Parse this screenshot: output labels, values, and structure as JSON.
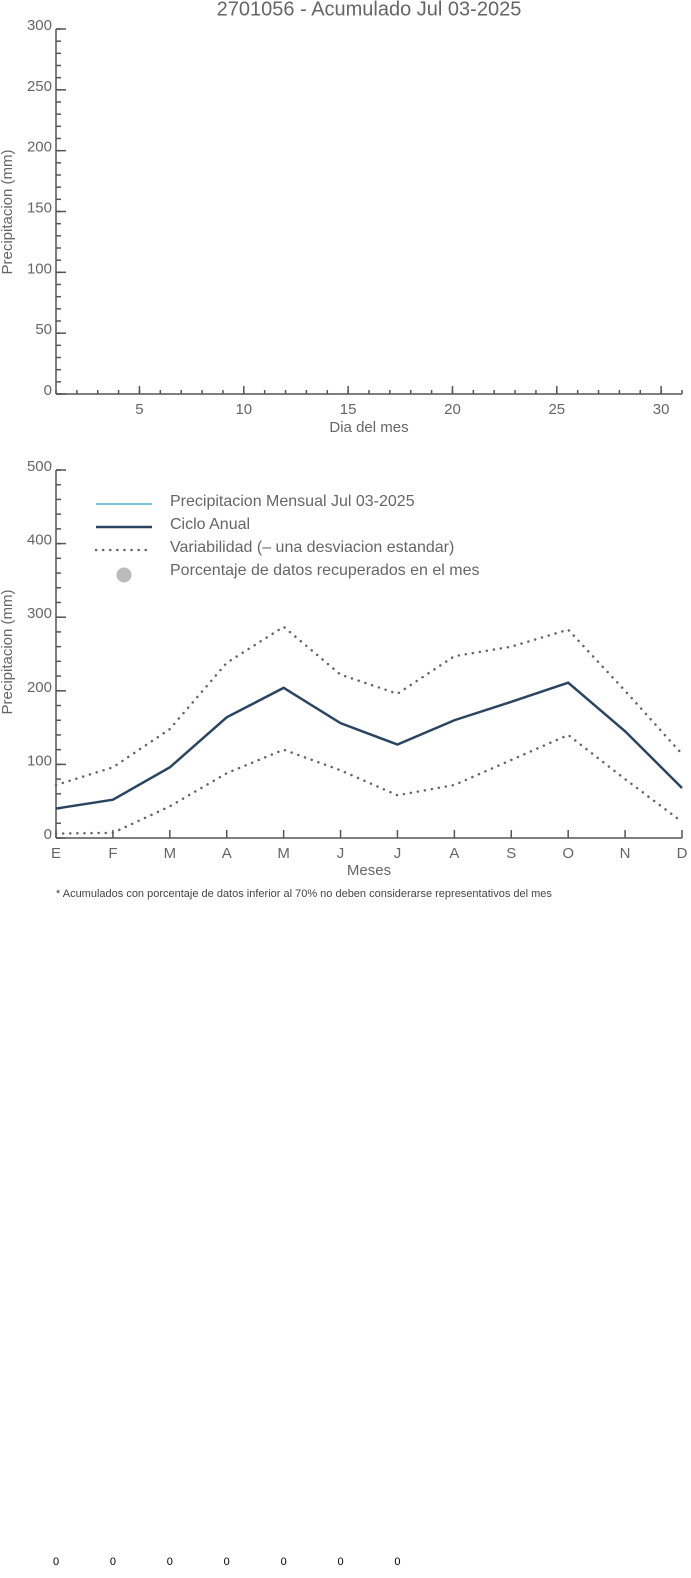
{
  "chart_data": [
    {
      "type": "line",
      "title": "2701056 - Acumulado Jul 03-2025",
      "x_label": "Dia del mes",
      "y_label": "Precipitacion (mm)",
      "xlim": [
        1,
        31
      ],
      "xticks": [
        5,
        10,
        15,
        20,
        25,
        30
      ],
      "ylim": [
        0,
        300
      ],
      "yticks": [
        0,
        50,
        100,
        150,
        200,
        250,
        300
      ],
      "series": []
    },
    {
      "type": "line",
      "x_label": "Meses",
      "y_label": "Precipitacion (mm)",
      "categories": [
        "E",
        "F",
        "M",
        "A",
        "M",
        "J",
        "J",
        "A",
        "S",
        "O",
        "N",
        "D"
      ],
      "ylim": [
        0,
        500
      ],
      "yticks": [
        0,
        100,
        200,
        300,
        400,
        500
      ],
      "series": [
        {
          "name": "Precipitacion Mensual Jul 03-2025",
          "color": "#4fb3c8",
          "values": [
            null,
            null,
            null,
            null,
            null,
            null,
            null,
            null,
            null,
            null,
            null,
            null
          ]
        },
        {
          "name": "Ciclo Anual",
          "color": "#2b4560",
          "values": [
            40,
            52,
            96,
            164,
            204,
            156,
            127,
            160,
            185,
            211,
            145,
            68
          ]
        },
        {
          "name": "Variabilidad (– una desviacion estandar)",
          "color": "#666666",
          "style": "dotted",
          "values": [
            72,
            96,
            148,
            238,
            287,
            222,
            196,
            247,
            260,
            283,
            200,
            114
          ],
          "lower_values": [
            6,
            7,
            43,
            88,
            120,
            92,
            58,
            72,
            106,
            140,
            80,
            22
          ]
        },
        {
          "name": "Porcentaje de datos recuperados en el mes",
          "color": "#bbbbbb",
          "marker": "circle",
          "values": [
            0,
            0,
            0,
            0,
            0,
            0,
            0,
            null,
            null,
            null,
            null,
            null
          ]
        }
      ],
      "note": "* Acumulados con porcentaje de datos inferior al 70% no deben considerarse representativos del mes"
    }
  ]
}
